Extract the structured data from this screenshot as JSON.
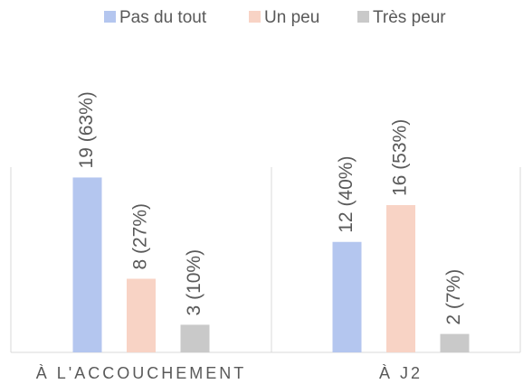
{
  "chart_data": {
    "type": "bar",
    "categories": [
      "À L'ACCOUCHEMENT",
      "À J2"
    ],
    "series": [
      {
        "name": "Pas du tout",
        "color": "#b4c6ef",
        "values": [
          19,
          12
        ],
        "value_labels": [
          "19 (63%)",
          "12 (40%)"
        ]
      },
      {
        "name": "Un peu",
        "color": "#f8d3c5",
        "values": [
          8,
          16
        ],
        "value_labels": [
          "8 (27%)",
          "16 (53%)"
        ]
      },
      {
        "name": "Très peur",
        "color": "#c9c9c9",
        "values": [
          3,
          2
        ],
        "value_labels": [
          "3 (10%)",
          "2 (7%)"
        ]
      }
    ],
    "ylim": [
      0,
      32
    ],
    "legend": "top"
  }
}
